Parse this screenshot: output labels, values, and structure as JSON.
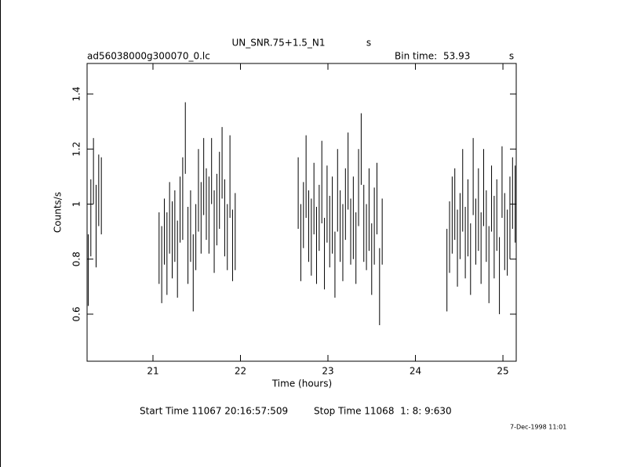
{
  "chart_data": {
    "type": "errorbar",
    "title": "UN_SNR.75+1.5_N1",
    "title_unit": "s",
    "subtitle": "ad56038000g300070_0.lc",
    "bin_time_label": "Bin time:",
    "bin_time": "53.93",
    "bin_time_unit": "s",
    "x_label": "Time (hours)",
    "y_label": "Counts/s",
    "start_time": "Start Time 11067 20:16:57:509",
    "stop_time": "Stop Time 11068  1: 8: 9:630",
    "date": "7-Dec-1998 11:01",
    "color": "#000000",
    "xlim": [
      20.247,
      25.152
    ],
    "ylim": [
      0.429,
      1.511
    ],
    "xticks": [
      21,
      22,
      23,
      24,
      25
    ],
    "yticks": [
      0.6,
      0.8,
      1,
      1.2,
      1.4
    ],
    "x": [
      20.26,
      20.29,
      20.32,
      20.35,
      20.38,
      20.41,
      21.07,
      21.1,
      21.13,
      21.16,
      21.19,
      21.22,
      21.25,
      21.28,
      21.31,
      21.34,
      21.37,
      21.4,
      21.43,
      21.46,
      21.49,
      21.52,
      21.55,
      21.58,
      21.61,
      21.64,
      21.67,
      21.7,
      21.73,
      21.76,
      21.79,
      21.82,
      21.85,
      21.88,
      21.91,
      21.94,
      22.66,
      22.69,
      22.72,
      22.75,
      22.78,
      22.81,
      22.84,
      22.87,
      22.9,
      22.93,
      22.96,
      22.99,
      23.02,
      23.05,
      23.08,
      23.11,
      23.14,
      23.17,
      23.2,
      23.23,
      23.26,
      23.29,
      23.32,
      23.35,
      23.38,
      23.41,
      23.44,
      23.47,
      23.5,
      23.53,
      23.56,
      23.59,
      23.62,
      24.36,
      24.39,
      24.42,
      24.45,
      24.48,
      24.51,
      24.54,
      24.57,
      24.6,
      24.63,
      24.66,
      24.69,
      24.72,
      24.75,
      24.78,
      24.81,
      24.84,
      24.87,
      24.9,
      24.93,
      24.96,
      24.99,
      25.02,
      25.05,
      25.08,
      25.11,
      25.14
    ],
    "values": [
      0.76,
      0.95,
      1.12,
      0.92,
      1.05,
      1.03,
      0.84,
      0.78,
      0.9,
      0.82,
      0.95,
      0.87,
      0.92,
      0.8,
      0.98,
      1.02,
      1.24,
      0.85,
      0.92,
      0.75,
      0.88,
      1.05,
      0.95,
      1.1,
      1.0,
      0.96,
      1.12,
      0.9,
      0.98,
      1.05,
      1.15,
      0.95,
      0.88,
      1.1,
      0.85,
      0.9,
      1.04,
      0.86,
      0.96,
      1.1,
      0.92,
      0.88,
      1.02,
      0.85,
      0.95,
      1.08,
      0.82,
      1.0,
      0.9,
      0.96,
      0.78,
      1.05,
      0.92,
      0.86,
      1.0,
      1.12,
      0.9,
      0.95,
      0.84,
      1.06,
      1.2,
      0.93,
      0.88,
      0.98,
      0.8,
      0.92,
      1.02,
      0.7,
      0.9,
      0.76,
      0.88,
      0.96,
      1.0,
      0.84,
      0.92,
      1.05,
      0.86,
      0.95,
      0.8,
      1.1,
      0.9,
      0.98,
      0.84,
      1.06,
      0.92,
      0.78,
      1.02,
      0.88,
      0.96,
      0.74,
      1.08,
      0.9,
      0.86,
      0.95,
      1.04,
      1.0
    ],
    "errors": [
      0.13,
      0.14,
      0.12,
      0.15,
      0.13,
      0.14,
      0.13,
      0.14,
      0.12,
      0.15,
      0.13,
      0.14,
      0.13,
      0.14,
      0.12,
      0.15,
      0.13,
      0.14,
      0.13,
      0.14,
      0.12,
      0.15,
      0.13,
      0.14,
      0.13,
      0.14,
      0.12,
      0.15,
      0.13,
      0.14,
      0.13,
      0.14,
      0.12,
      0.15,
      0.13,
      0.14,
      0.13,
      0.14,
      0.12,
      0.15,
      0.13,
      0.14,
      0.13,
      0.14,
      0.12,
      0.15,
      0.13,
      0.14,
      0.13,
      0.14,
      0.12,
      0.15,
      0.13,
      0.14,
      0.13,
      0.14,
      0.12,
      0.15,
      0.13,
      0.14,
      0.13,
      0.14,
      0.12,
      0.15,
      0.13,
      0.14,
      0.13,
      0.14,
      0.12,
      0.15,
      0.13,
      0.14,
      0.13,
      0.14,
      0.12,
      0.15,
      0.13,
      0.14,
      0.13,
      0.14,
      0.12,
      0.15,
      0.13,
      0.14,
      0.13,
      0.14,
      0.12,
      0.15,
      0.13,
      0.14,
      0.13,
      0.14,
      0.12,
      0.15,
      0.13,
      0.14
    ]
  }
}
